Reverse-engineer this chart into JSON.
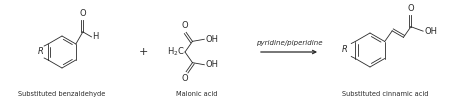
{
  "background_color": "#ffffff",
  "label_benzaldehyde": "Substituted benzaldehyde",
  "label_malonic": "Malonic acid",
  "label_cinnamic": "Substituted cinnamic acid",
  "arrow_label": "pyridine/piperidine",
  "figsize": [
    4.74,
    1.02
  ],
  "dpi": 100,
  "text_color": "#2a2a2a",
  "line_color": "#2a2a2a",
  "font_size_label": 4.8,
  "font_size_arrow": 5.0,
  "font_size_chem": 6.0,
  "font_size_plus": 8.0
}
